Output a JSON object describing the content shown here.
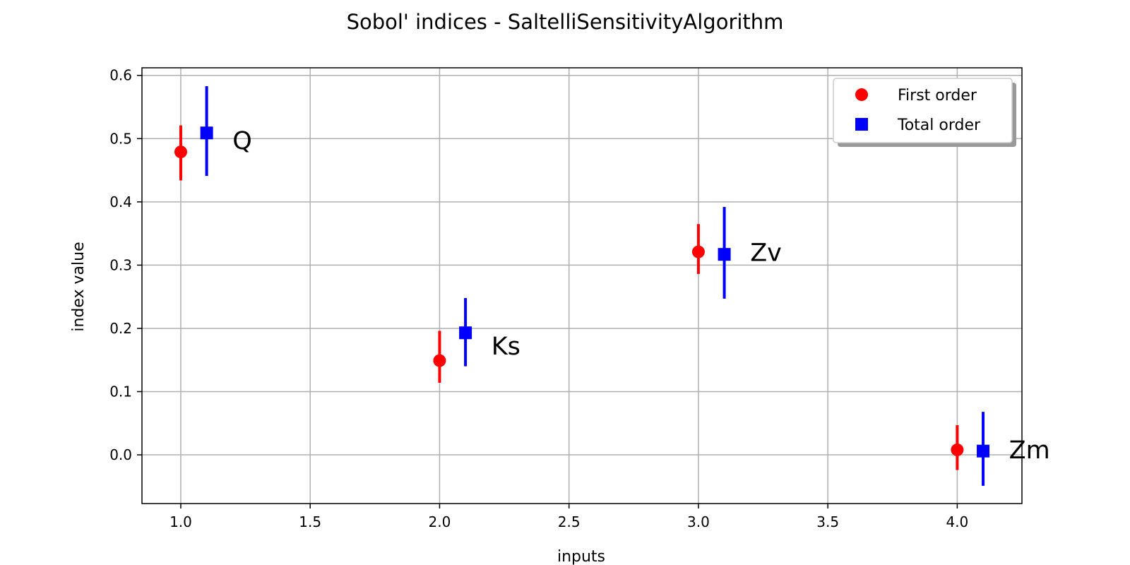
{
  "chart_data": {
    "type": "scatter",
    "title": "Sobol' indices - SaltelliSensitivityAlgorithm",
    "xlabel": "inputs",
    "ylabel": "index value",
    "xlim": [
      0.85,
      4.25
    ],
    "ylim": [
      -0.077,
      0.612
    ],
    "xticks": [
      1.0,
      1.5,
      2.0,
      2.5,
      3.0,
      3.5,
      4.0
    ],
    "xtick_labels": [
      "1.0",
      "1.5",
      "2.0",
      "2.5",
      "3.0",
      "3.5",
      "4.0"
    ],
    "yticks": [
      0.0,
      0.1,
      0.2,
      0.3,
      0.4,
      0.5,
      0.6
    ],
    "ytick_labels": [
      "0.0",
      "0.1",
      "0.2",
      "0.3",
      "0.4",
      "0.5",
      "0.6"
    ],
    "grid": true,
    "legend": "top-right",
    "series": [
      {
        "name": "First order",
        "marker": "circle",
        "color": "#ff0000",
        "x": [
          1.0,
          2.0,
          3.0,
          4.0
        ],
        "y": [
          0.479,
          0.149,
          0.321,
          0.008
        ],
        "y_lower": [
          0.434,
          0.114,
          0.286,
          -0.024
        ],
        "y_upper": [
          0.521,
          0.196,
          0.365,
          0.047
        ]
      },
      {
        "name": "Total order",
        "marker": "square",
        "color": "#0000ff",
        "x": [
          1.1,
          2.1,
          3.1,
          4.1
        ],
        "y": [
          0.509,
          0.193,
          0.317,
          0.006
        ],
        "y_lower": [
          0.441,
          0.14,
          0.247,
          -0.049
        ],
        "y_upper": [
          0.583,
          0.248,
          0.392,
          0.068
        ]
      }
    ],
    "annotations": [
      {
        "text": "Q",
        "x": 1.2,
        "y": 0.497
      },
      {
        "text": "Ks",
        "x": 2.2,
        "y": 0.172
      },
      {
        "text": "Zv",
        "x": 3.2,
        "y": 0.32
      },
      {
        "text": "Zm",
        "x": 4.2,
        "y": 0.008
      }
    ]
  }
}
